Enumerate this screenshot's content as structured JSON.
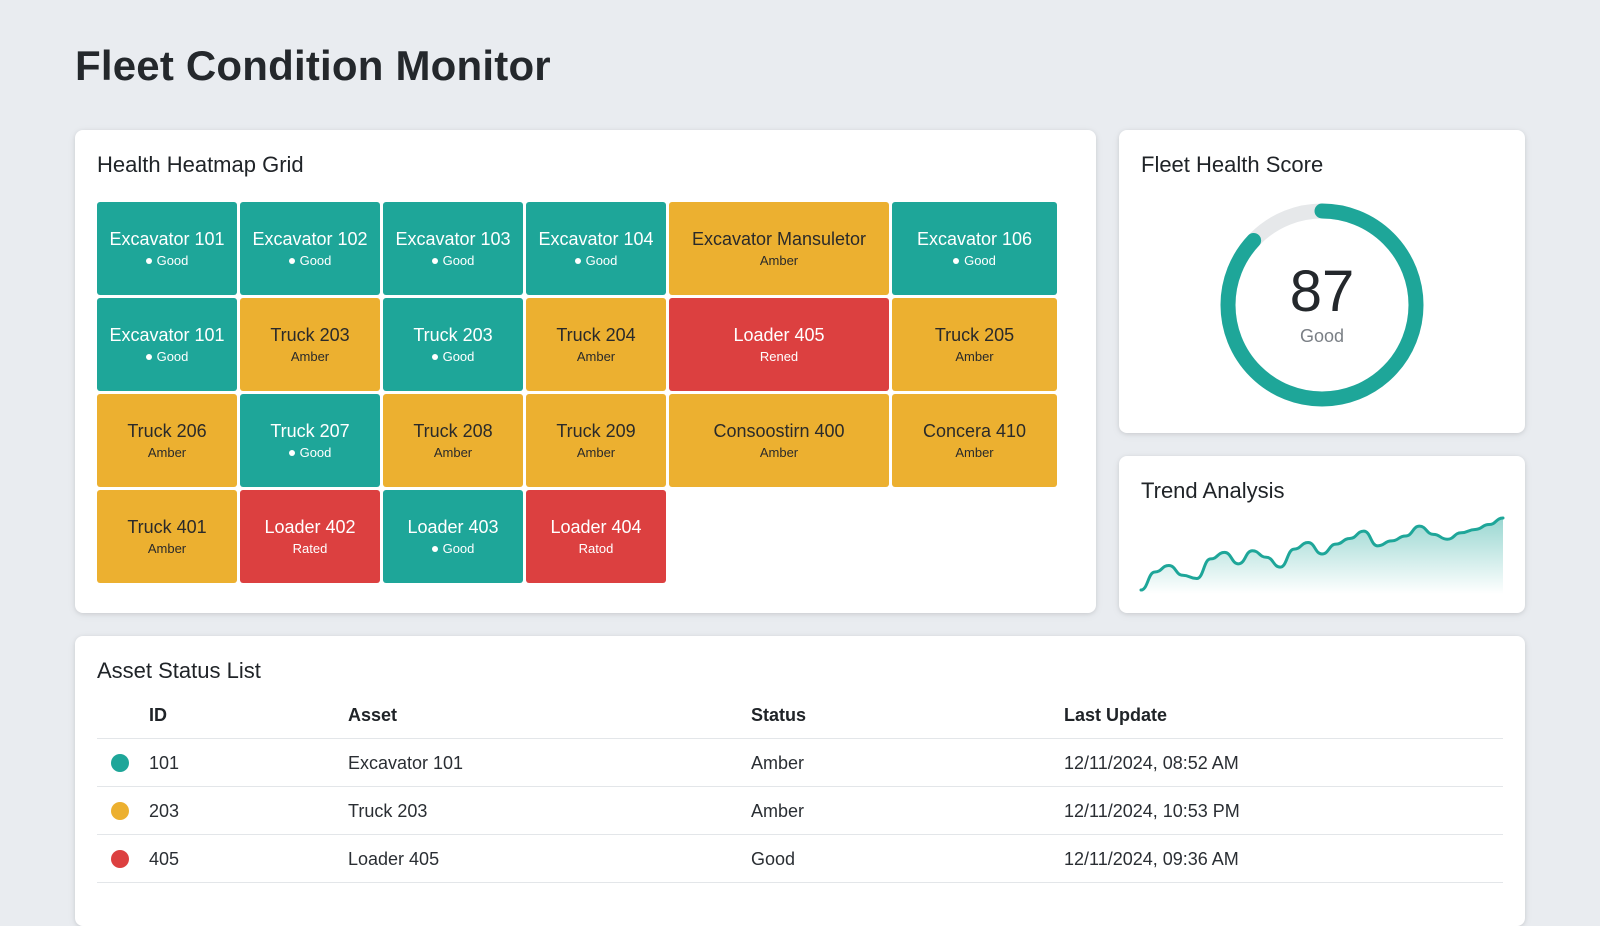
{
  "page": {
    "title": "Fleet Condition Monitor"
  },
  "colors": {
    "good": "#1ea699",
    "amber": "#ecb030",
    "red": "#dc4040"
  },
  "heatmap": {
    "title": "Health Heatmap Grid",
    "tiles": [
      {
        "name": "Excavator 101",
        "status": "Good",
        "level": "good"
      },
      {
        "name": "Excavator 102",
        "status": "Good",
        "level": "good"
      },
      {
        "name": "Excavator 103",
        "status": "Good",
        "level": "good"
      },
      {
        "name": "Excavator 104",
        "status": "Good",
        "level": "good"
      },
      {
        "name": "Excavator Mansuletor",
        "status": "Amber",
        "level": "amber"
      },
      {
        "name": "Excavator 106",
        "status": "Good",
        "level": "good"
      },
      {
        "name": "Excavator 101",
        "status": "Good",
        "level": "good"
      },
      {
        "name": "Truck 203",
        "status": "Amber",
        "level": "amber"
      },
      {
        "name": "Truck 203",
        "status": "Good",
        "level": "good"
      },
      {
        "name": "Truck 204",
        "status": "Amber",
        "level": "amber"
      },
      {
        "name": "Loader 405",
        "status": "Rened",
        "level": "red"
      },
      {
        "name": "Truck 205",
        "status": "Amber",
        "level": "amber"
      },
      {
        "name": "Truck 206",
        "status": "Amber",
        "level": "amber"
      },
      {
        "name": "Truck 207",
        "status": "Good",
        "level": "good"
      },
      {
        "name": "Truck 208",
        "status": "Amber",
        "level": "amber"
      },
      {
        "name": "Truck 209",
        "status": "Amber",
        "level": "amber"
      },
      {
        "name": "Consoostirn 400",
        "status": "Amber",
        "level": "amber"
      },
      {
        "name": "Concera 410",
        "status": "Amber",
        "level": "amber"
      },
      {
        "name": "Truck 401",
        "status": "Amber",
        "level": "amber"
      },
      {
        "name": "Loader 402",
        "status": "Rated",
        "level": "red"
      },
      {
        "name": "Loader 403",
        "status": "Good",
        "level": "good"
      },
      {
        "name": "Loader 404",
        "status": "Ratod",
        "level": "red"
      }
    ]
  },
  "score": {
    "title": "Fleet Health Score",
    "value": "87",
    "label": "Good",
    "fraction": 0.87
  },
  "trend": {
    "title": "Trend Analysis",
    "values": [
      0,
      22,
      30,
      18,
      14,
      38,
      46,
      32,
      48,
      40,
      28,
      50,
      58,
      44,
      56,
      63,
      72,
      54,
      60,
      66,
      78,
      68,
      62,
      70,
      74,
      80,
      88
    ]
  },
  "assets": {
    "title": "Asset Status List",
    "columns": {
      "id": "ID",
      "asset": "Asset",
      "status": "Status",
      "update": "Last Update"
    },
    "rows": [
      {
        "dot": "good",
        "id": "101",
        "asset": "Excavator 101",
        "status": "Amber",
        "update": "12/11/2024, 08:52 AM"
      },
      {
        "dot": "amber",
        "id": "203",
        "asset": "Truck 203",
        "status": "Amber",
        "update": "12/11/2024, 10:53 PM"
      },
      {
        "dot": "red",
        "id": "405",
        "asset": "Loader 405",
        "status": "Good",
        "update": "12/11/2024, 09:36 AM"
      }
    ]
  }
}
